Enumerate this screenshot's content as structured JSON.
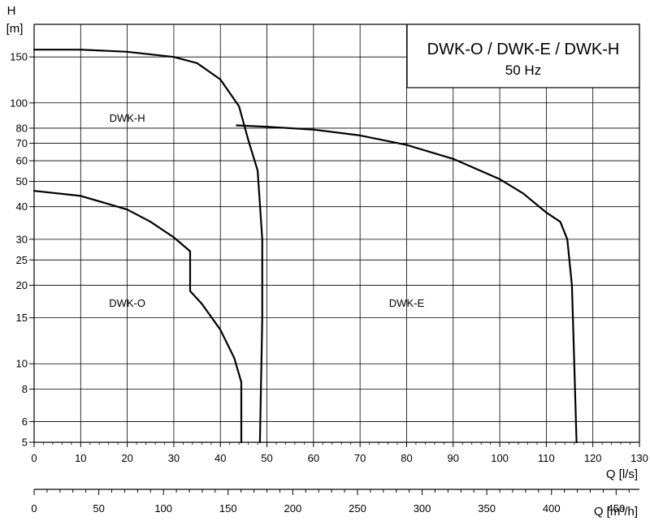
{
  "chart_data": {
    "type": "line",
    "title": "DWK-O / DWK-E / DWK-H",
    "subtitle": "50 Hz",
    "y_axis": {
      "label_top": "H",
      "label_unit": "[m]",
      "scale": "log",
      "ylim": [
        5,
        200
      ],
      "ticks": [
        5,
        6,
        8,
        10,
        15,
        20,
        25,
        30,
        40,
        50,
        60,
        70,
        80,
        100,
        150
      ]
    },
    "x_axis": {
      "label": "Q [l/s]",
      "xlim": [
        0,
        130
      ],
      "ticks": [
        0,
        10,
        20,
        30,
        40,
        50,
        60,
        70,
        80,
        90,
        100,
        110,
        120,
        130
      ]
    },
    "x_axis_secondary": {
      "label": "Q [m³/h]",
      "xlim": [
        0,
        468
      ],
      "ticks": [
        0,
        50,
        100,
        150,
        200,
        250,
        300,
        350,
        400,
        450
      ]
    },
    "grid": true,
    "series": [
      {
        "name": "DWK-O",
        "points": [
          [
            0,
            46
          ],
          [
            10,
            44
          ],
          [
            20,
            39
          ],
          [
            25,
            35
          ],
          [
            30,
            30.5
          ],
          [
            33.5,
            27
          ],
          [
            33.5,
            19
          ],
          [
            36,
            17
          ],
          [
            40,
            13.5
          ],
          [
            43,
            10.5
          ],
          [
            44.5,
            8.5
          ],
          [
            44.5,
            5
          ]
        ]
      },
      {
        "name": "DWK-H",
        "points": [
          [
            0,
            160
          ],
          [
            10,
            160
          ],
          [
            20,
            157
          ],
          [
            30,
            150
          ],
          [
            35,
            142
          ],
          [
            40,
            123
          ],
          [
            44,
            97
          ],
          [
            46,
            72
          ],
          [
            48,
            55
          ],
          [
            49,
            30
          ],
          [
            49,
            15
          ],
          [
            48.5,
            5
          ]
        ]
      },
      {
        "name": "DWK-E",
        "points": [
          [
            43.5,
            82
          ],
          [
            50,
            81
          ],
          [
            60,
            79
          ],
          [
            70,
            75
          ],
          [
            80,
            69
          ],
          [
            90,
            61
          ],
          [
            100,
            51
          ],
          [
            105,
            45
          ],
          [
            110,
            38
          ],
          [
            113,
            35
          ],
          [
            114.5,
            30
          ],
          [
            115.5,
            20
          ],
          [
            116,
            10
          ],
          [
            116.5,
            5
          ]
        ]
      }
    ],
    "annotations": [
      {
        "text": "DWK-H",
        "x": 20,
        "y": 87
      },
      {
        "text": "DWK-O",
        "x": 20,
        "y": 17
      },
      {
        "text": "DWK-E",
        "x": 80,
        "y": 17
      }
    ]
  }
}
